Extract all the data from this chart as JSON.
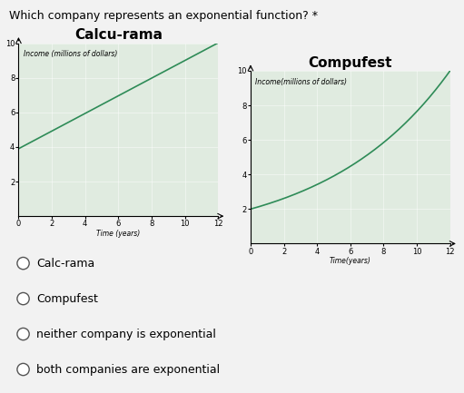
{
  "title_question": "Which company represents an exponential function? *",
  "title1": "Calcu-rama",
  "title2": "Compufest",
  "ylabel1": "Income (millions of dollars)",
  "ylabel2": "Income(millions of dollars)",
  "xlabel1": "Time (years)",
  "xlabel2": "Time(years)",
  "xlim": [
    0,
    12
  ],
  "ylim1": [
    0,
    10
  ],
  "ylim2": [
    0,
    10
  ],
  "xticks": [
    0,
    2,
    4,
    6,
    8,
    10,
    12
  ],
  "yticks": [
    2,
    4,
    6,
    8,
    10
  ],
  "line_color": "#2e8b57",
  "bg_color": "#f2f2f2",
  "chart_bg": "#e0ebe0",
  "radio_options": [
    "Calc-rama",
    "Compufest",
    "neither company is exponential",
    "both companies are exponential"
  ],
  "question_fontsize": 9,
  "title_fontsize": 11,
  "axis_label_fontsize": 5.5,
  "tick_fontsize": 6,
  "radio_fontsize": 9
}
